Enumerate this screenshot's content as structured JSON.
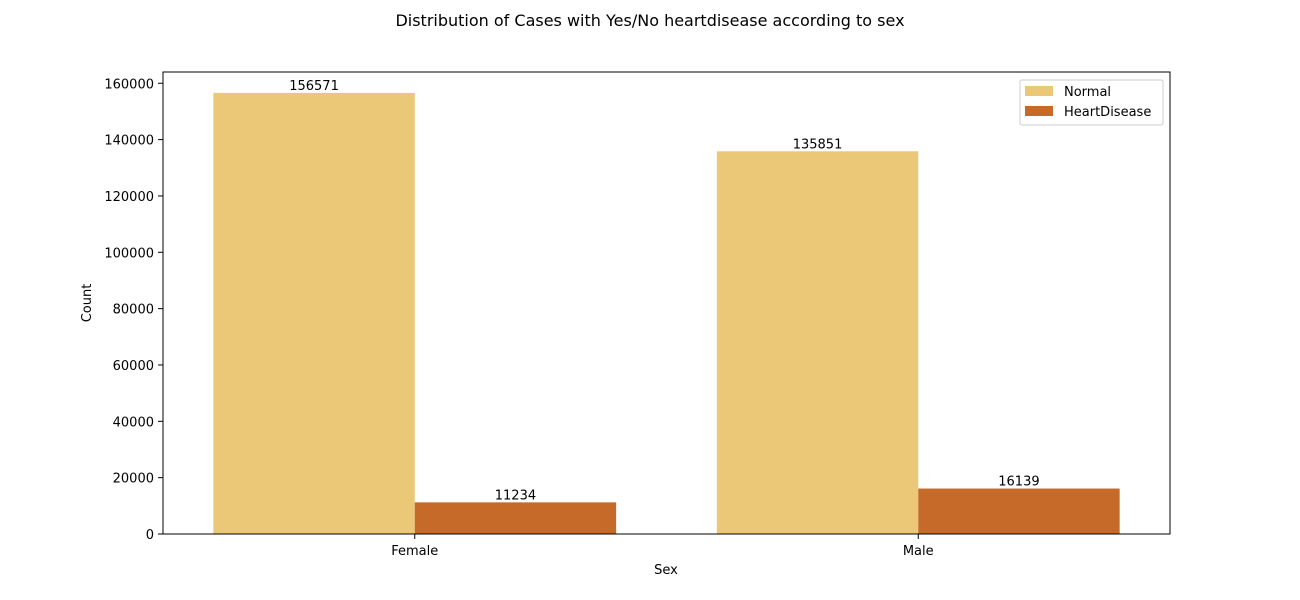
{
  "chart_data": {
    "type": "bar",
    "title": "Distribution of Cases with Yes/No heartdisease according to sex",
    "xlabel": "Sex",
    "ylabel": "Count",
    "categories": [
      "Female",
      "Male"
    ],
    "series": [
      {
        "name": "Normal",
        "color": "#EAC877",
        "values": [
          156571,
          135851
        ]
      },
      {
        "name": "HeartDisease",
        "color": "#C56A29",
        "values": [
          11234,
          16139
        ]
      }
    ],
    "ylim": [
      0,
      164000
    ],
    "yticks": [
      0,
      20000,
      40000,
      60000,
      80000,
      100000,
      120000,
      140000,
      160000
    ],
    "legend": {
      "position": "top-right"
    },
    "grid": false
  }
}
